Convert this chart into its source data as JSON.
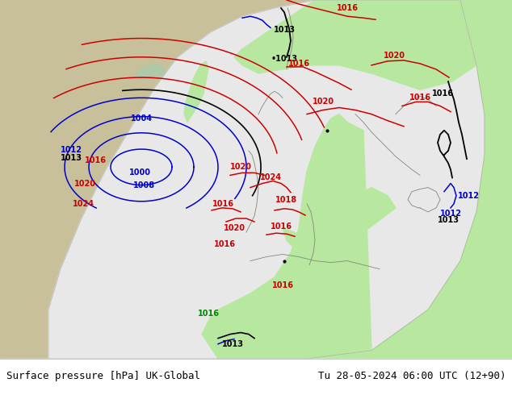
{
  "title_left": "Surface pressure [hPa] UK-Global",
  "title_right": "Tu 28-05-2024 06:00 UTC (12+90)",
  "fig_width": 6.34,
  "fig_height": 4.9,
  "dpi": 100,
  "color_land_outside": "#c8c09a",
  "color_sea_outside": "#c0c0c0",
  "color_domain_sea": "#e8e8e8",
  "color_domain_land_green": "#b8e8a0",
  "color_coast": "#808080",
  "color_border": "#a0a0a0",
  "color_blue": "#0000cc",
  "color_red": "#cc0000",
  "color_orange": "#cc6600",
  "color_black": "#000000",
  "color_footer_bg": "#ffffff",
  "font_size_label": 7,
  "font_size_footer": 9
}
